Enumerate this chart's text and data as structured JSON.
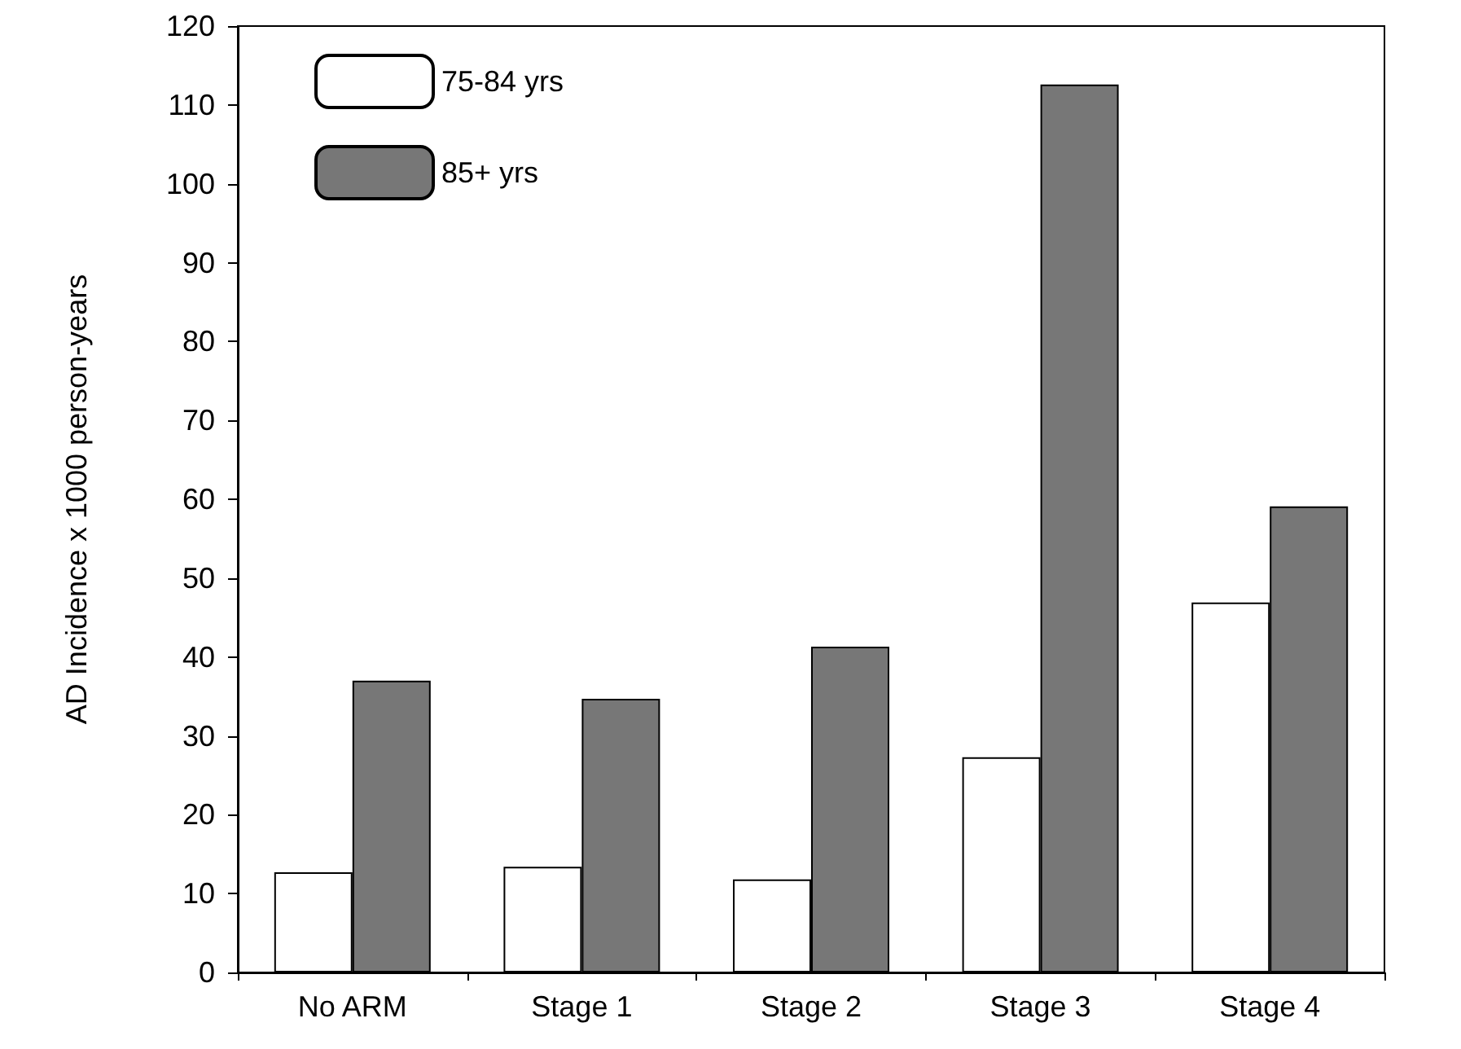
{
  "chart_data": {
    "type": "bar",
    "ylabel": "AD Incidence x 1000 person-years",
    "categories": [
      "No ARM",
      "Stage 1",
      "Stage 2",
      "Stage 3",
      "Stage 4"
    ],
    "series": [
      {
        "name": "75-84 yrs",
        "color": "#ffffff",
        "values": [
          12.7,
          13.4,
          11.8,
          27.3,
          46.9
        ]
      },
      {
        "name": "85+ yrs",
        "color": "#777777",
        "values": [
          37,
          34.7,
          41.3,
          112.6,
          59.1
        ]
      }
    ],
    "ylim": [
      0,
      120
    ],
    "yticks": [
      0,
      10,
      20,
      30,
      40,
      50,
      60,
      70,
      80,
      90,
      100,
      110,
      120
    ],
    "grid": false,
    "legend": "top left"
  }
}
